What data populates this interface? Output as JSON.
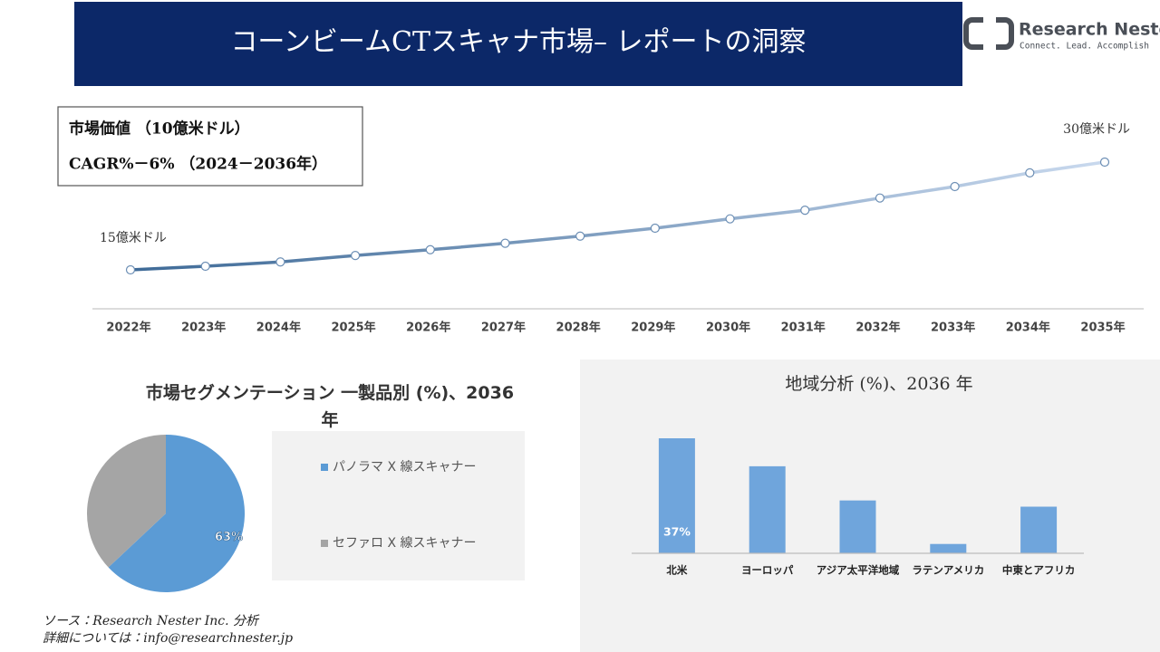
{
  "header": {
    "title": "コーンビームCTスキャナ市場– レポートの洞察",
    "logo_name": "Research Nester",
    "logo_tagline": "Connect. Lead. Accomplish"
  },
  "chart_data": [
    {
      "type": "line",
      "info_lines": [
        "市場価値 （10億米ドル）",
        "CAGR%－6% （2024－2036年）"
      ],
      "categories": [
        "2022年",
        "2023年",
        "2024年",
        "2025年",
        "2026年",
        "2027年",
        "2028年",
        "2029年",
        "2030年",
        "2031年",
        "2032年",
        "2033年",
        "2034年",
        "2035年"
      ],
      "values": [
        1.5,
        1.55,
        1.61,
        1.7,
        1.78,
        1.87,
        1.97,
        2.08,
        2.21,
        2.33,
        2.5,
        2.66,
        2.85,
        3.0
      ],
      "value_labels": [
        "15億米ドル",
        null,
        null,
        null,
        null,
        null,
        null,
        null,
        null,
        null,
        null,
        null,
        null,
        "30億米ドル"
      ],
      "colors": [
        "#3e6a97",
        "#c9d9ee"
      ]
    },
    {
      "type": "pie",
      "title": "市場セグメンテーション 一製品別 (%)、2036年",
      "categories": [
        "パノラマ X 線スキャナー",
        "セファロ X 線スキャナー"
      ],
      "values": [
        63,
        37
      ],
      "value_labels": [
        "63%",
        null
      ],
      "colors": [
        "#5b9bd5",
        "#a5a5a5"
      ]
    },
    {
      "type": "bar",
      "title": "地域分析 (%)、2036 年",
      "categories": [
        "北米",
        "ヨーロッパ",
        "アジア太平洋地域",
        "ラテンアメリカ",
        "中東とアフリカ"
      ],
      "values": [
        37,
        28,
        17,
        3,
        15
      ],
      "value_labels": [
        "37%",
        null,
        null,
        null,
        null
      ],
      "color": "#6fa5dc"
    }
  ],
  "footer": {
    "source": "ソース：Research Nester Inc. 分析",
    "contact": "詳細については：info@researchnester.jp"
  }
}
